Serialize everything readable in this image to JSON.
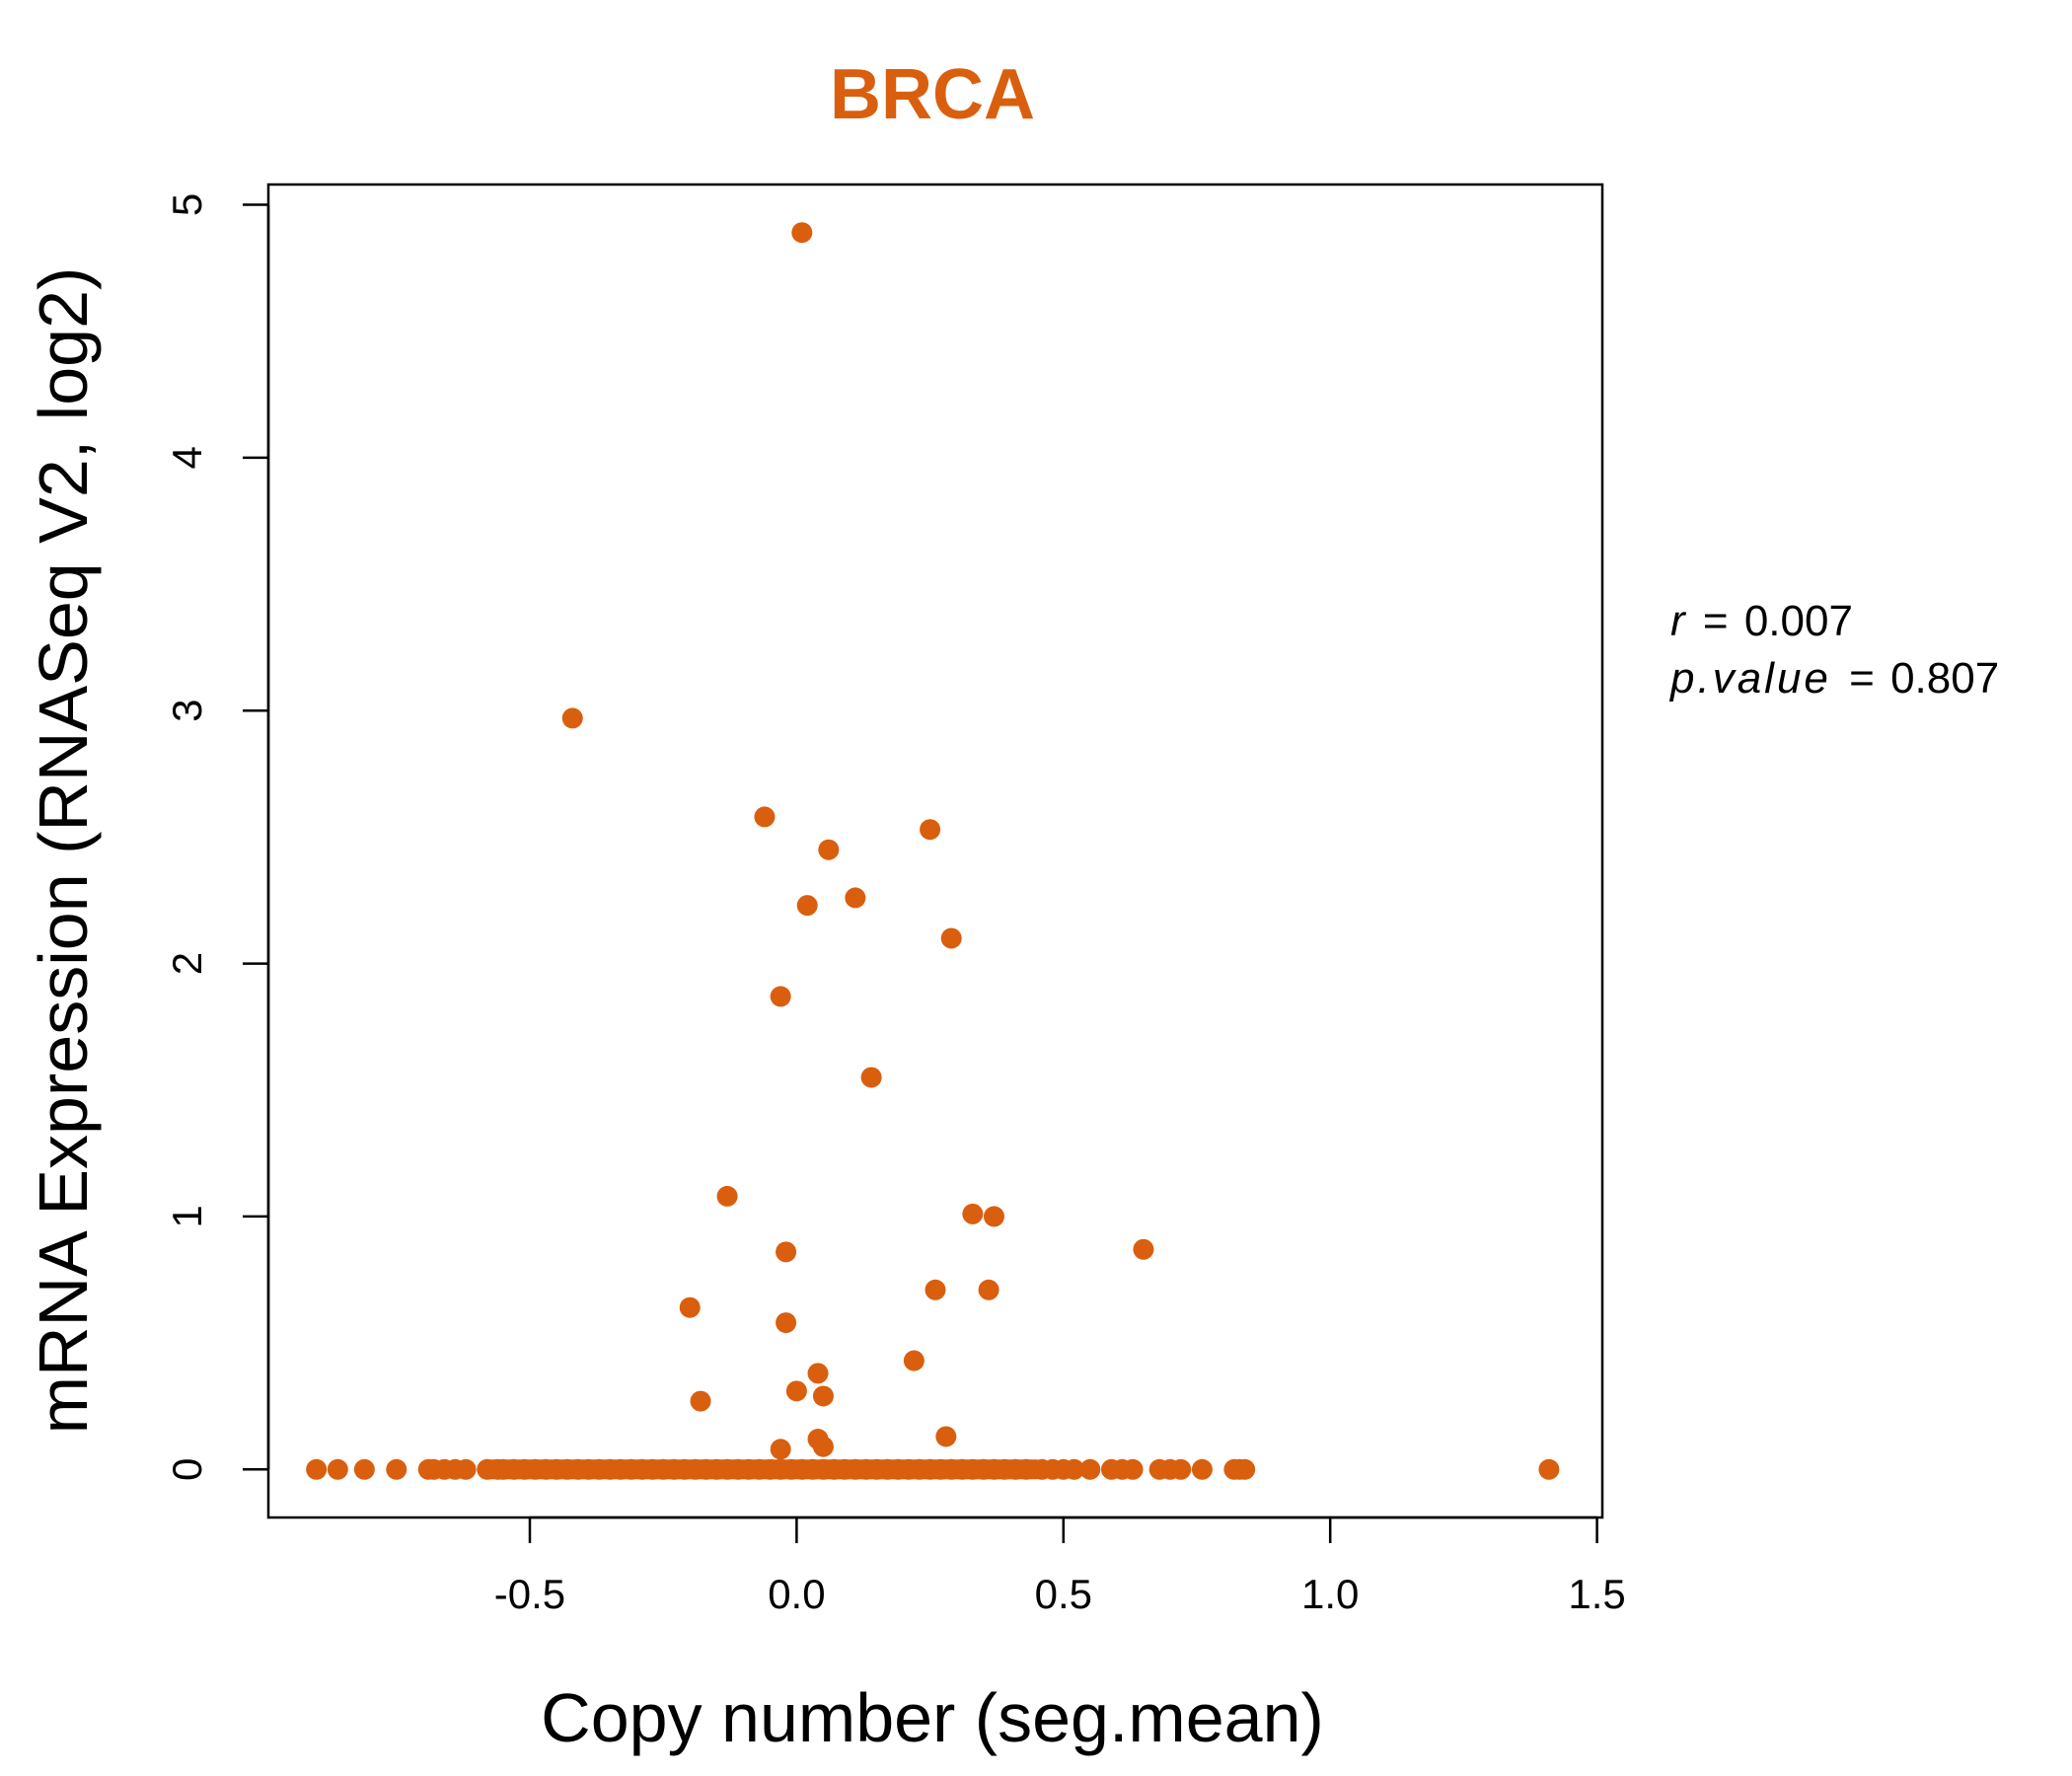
{
  "chart_data": {
    "type": "scatter",
    "title": "BRCA",
    "xlabel": "Copy number (seg.mean)",
    "ylabel": "mRNA Expression (RNASeq V2, log2)",
    "xlim": [
      -0.99,
      1.51
    ],
    "ylim": [
      -0.19,
      5.08
    ],
    "x_ticks": [
      -0.5,
      0.0,
      0.5,
      1.0,
      1.5
    ],
    "x_tick_labels": [
      "-0.5",
      "0.0",
      "0.5",
      "1.0",
      "1.5"
    ],
    "y_ticks": [
      0,
      1,
      2,
      3,
      4,
      5
    ],
    "y_tick_labels": [
      "0",
      "1",
      "2",
      "3",
      "4",
      "5"
    ],
    "grid": false,
    "point_color": "#D95F0E",
    "title_color": "#D95F0E",
    "stats": {
      "r_symbol": "r",
      "r_value": "0.007",
      "p_symbol": "p.value",
      "p_value": "0.807",
      "equals": "="
    },
    "points": [
      {
        "x": 0.01,
        "y": 4.89
      },
      {
        "x": -0.42,
        "y": 2.97
      },
      {
        "x": -0.06,
        "y": 2.58
      },
      {
        "x": 0.25,
        "y": 2.53
      },
      {
        "x": 0.06,
        "y": 2.45
      },
      {
        "x": 0.11,
        "y": 2.26
      },
      {
        "x": 0.02,
        "y": 2.23
      },
      {
        "x": 0.29,
        "y": 2.1
      },
      {
        "x": -0.03,
        "y": 1.87
      },
      {
        "x": 0.14,
        "y": 1.55
      },
      {
        "x": -0.13,
        "y": 1.08
      },
      {
        "x": 0.33,
        "y": 1.01
      },
      {
        "x": 0.37,
        "y": 1.0
      },
      {
        "x": 0.65,
        "y": 0.87
      },
      {
        "x": -0.02,
        "y": 0.86
      },
      {
        "x": 0.26,
        "y": 0.71
      },
      {
        "x": 0.36,
        "y": 0.71
      },
      {
        "x": -0.2,
        "y": 0.64
      },
      {
        "x": -0.02,
        "y": 0.58
      },
      {
        "x": 0.22,
        "y": 0.43
      },
      {
        "x": 0.04,
        "y": 0.38
      },
      {
        "x": 0.0,
        "y": 0.31
      },
      {
        "x": 0.05,
        "y": 0.29
      },
      {
        "x": -0.18,
        "y": 0.27
      },
      {
        "x": 0.28,
        "y": 0.13
      },
      {
        "x": 0.04,
        "y": 0.12
      },
      {
        "x": 0.05,
        "y": 0.09
      },
      {
        "x": -0.03,
        "y": 0.08
      },
      {
        "x": -0.9,
        "y": 0
      },
      {
        "x": -0.86,
        "y": 0
      },
      {
        "x": -0.81,
        "y": 0
      },
      {
        "x": -0.75,
        "y": 0
      },
      {
        "x": -0.69,
        "y": 0
      },
      {
        "x": -0.68,
        "y": 0
      },
      {
        "x": -0.66,
        "y": 0
      },
      {
        "x": -0.64,
        "y": 0
      },
      {
        "x": -0.62,
        "y": 0
      },
      {
        "x": -0.58,
        "y": 0
      },
      {
        "x": -0.56,
        "y": 0
      },
      {
        "x": -0.55,
        "y": 0
      },
      {
        "x": -0.53,
        "y": 0
      },
      {
        "x": -0.51,
        "y": 0
      },
      {
        "x": -0.49,
        "y": 0
      },
      {
        "x": -0.47,
        "y": 0
      },
      {
        "x": -0.45,
        "y": 0
      },
      {
        "x": -0.43,
        "y": 0
      },
      {
        "x": -0.41,
        "y": 0
      },
      {
        "x": -0.39,
        "y": 0
      },
      {
        "x": -0.37,
        "y": 0
      },
      {
        "x": -0.35,
        "y": 0
      },
      {
        "x": -0.33,
        "y": 0
      },
      {
        "x": -0.31,
        "y": 0
      },
      {
        "x": -0.29,
        "y": 0
      },
      {
        "x": -0.27,
        "y": 0
      },
      {
        "x": -0.25,
        "y": 0
      },
      {
        "x": -0.23,
        "y": 0
      },
      {
        "x": -0.21,
        "y": 0
      },
      {
        "x": -0.19,
        "y": 0
      },
      {
        "x": -0.17,
        "y": 0
      },
      {
        "x": -0.15,
        "y": 0
      },
      {
        "x": -0.13,
        "y": 0
      },
      {
        "x": -0.11,
        "y": 0
      },
      {
        "x": -0.09,
        "y": 0
      },
      {
        "x": -0.07,
        "y": 0
      },
      {
        "x": -0.05,
        "y": 0
      },
      {
        "x": -0.03,
        "y": 0
      },
      {
        "x": -0.01,
        "y": 0
      },
      {
        "x": 0.01,
        "y": 0
      },
      {
        "x": 0.03,
        "y": 0
      },
      {
        "x": 0.05,
        "y": 0
      },
      {
        "x": 0.07,
        "y": 0
      },
      {
        "x": 0.09,
        "y": 0
      },
      {
        "x": 0.11,
        "y": 0
      },
      {
        "x": 0.13,
        "y": 0
      },
      {
        "x": 0.15,
        "y": 0
      },
      {
        "x": 0.17,
        "y": 0
      },
      {
        "x": 0.19,
        "y": 0
      },
      {
        "x": 0.21,
        "y": 0
      },
      {
        "x": 0.23,
        "y": 0
      },
      {
        "x": 0.25,
        "y": 0
      },
      {
        "x": 0.27,
        "y": 0
      },
      {
        "x": 0.29,
        "y": 0
      },
      {
        "x": 0.31,
        "y": 0
      },
      {
        "x": 0.33,
        "y": 0
      },
      {
        "x": 0.35,
        "y": 0
      },
      {
        "x": 0.37,
        "y": 0
      },
      {
        "x": 0.39,
        "y": 0
      },
      {
        "x": 0.41,
        "y": 0
      },
      {
        "x": 0.43,
        "y": 0
      },
      {
        "x": 0.46,
        "y": 0
      },
      {
        "x": 0.48,
        "y": 0
      },
      {
        "x": 0.5,
        "y": 0
      },
      {
        "x": 0.52,
        "y": 0
      },
      {
        "x": 0.55,
        "y": 0
      },
      {
        "x": 0.59,
        "y": 0
      },
      {
        "x": 0.61,
        "y": 0
      },
      {
        "x": 0.63,
        "y": 0
      },
      {
        "x": 0.68,
        "y": 0
      },
      {
        "x": 0.7,
        "y": 0
      },
      {
        "x": 0.72,
        "y": 0
      },
      {
        "x": 0.76,
        "y": 0
      },
      {
        "x": 0.82,
        "y": 0
      },
      {
        "x": 0.83,
        "y": 0
      },
      {
        "x": 0.84,
        "y": 0
      },
      {
        "x": 1.41,
        "y": 0
      }
    ]
  }
}
